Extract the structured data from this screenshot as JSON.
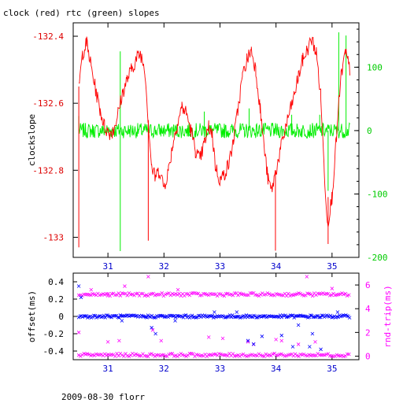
{
  "colors": {
    "clock": "#ff0000",
    "rtc": "#00ee00",
    "offset": "#0000ff",
    "roundtrip": "#ff00ff",
    "frame": "#000000"
  },
  "chart_data": [
    {
      "type": "line",
      "title": "clock (red) rtc (green) slopes",
      "xlabel": "",
      "ylabel": "clockslope",
      "xlim": [
        30.38,
        35.48
      ],
      "ylim": [
        -133.06,
        -132.36
      ],
      "y2lim": [
        -200,
        170
      ],
      "xticks": [
        31,
        32,
        33,
        34,
        35
      ],
      "yticks": [
        -132.4,
        -132.6,
        -132.8,
        -133
      ],
      "y2ticks": [
        100,
        0,
        -100,
        -200
      ],
      "xticklabels": [
        "31",
        "32",
        "33",
        "34",
        "35"
      ],
      "yticklabels": [
        "-132.4",
        "-132.6",
        "-132.8",
        "-133"
      ],
      "y2ticklabels": [
        "100",
        "0",
        "-100",
        "-200"
      ],
      "series": [
        {
          "name": "clock",
          "axis": "left",
          "color": "#ff0000",
          "x": [
            30.48,
            30.55,
            30.62,
            30.7,
            30.78,
            30.86,
            30.94,
            31.02,
            31.1,
            31.18,
            31.26,
            31.34,
            31.42,
            31.5,
            31.58,
            31.66,
            31.72,
            31.78,
            31.84,
            31.92,
            32.0,
            32.08,
            32.16,
            32.24,
            32.32,
            32.4,
            32.48,
            32.56,
            32.64,
            32.72,
            32.8,
            32.86,
            32.92,
            33.0,
            33.08,
            33.16,
            33.24,
            33.32,
            33.4,
            33.48,
            33.56,
            33.64,
            33.72,
            33.8,
            33.86,
            33.92,
            34.0,
            34.08,
            34.16,
            34.24,
            34.32,
            34.4,
            34.48,
            34.56,
            34.64,
            34.72,
            34.8,
            34.86,
            34.92,
            35.0,
            35.08,
            35.16,
            35.24,
            35.32
          ],
          "values": [
            -132.55,
            -132.45,
            -132.42,
            -132.49,
            -132.56,
            -132.62,
            -132.67,
            -132.69,
            -132.68,
            -132.63,
            -132.57,
            -132.53,
            -132.5,
            -132.47,
            -132.45,
            -132.5,
            -132.65,
            -132.79,
            -132.82,
            -132.8,
            -132.85,
            -132.8,
            -132.72,
            -132.66,
            -132.61,
            -132.63,
            -132.68,
            -132.74,
            -132.77,
            -132.72,
            -132.67,
            -132.69,
            -132.79,
            -132.83,
            -132.81,
            -132.78,
            -132.71,
            -132.62,
            -132.52,
            -132.47,
            -132.44,
            -132.5,
            -132.62,
            -132.75,
            -132.83,
            -132.86,
            -132.8,
            -132.74,
            -132.68,
            -132.63,
            -132.58,
            -132.52,
            -132.47,
            -132.44,
            -132.41,
            -132.45,
            -132.58,
            -132.8,
            -132.96,
            -132.88,
            -132.7,
            -132.52,
            -132.45,
            -132.5
          ],
          "spikes": [
            {
              "x": 30.48,
              "y": -133.03
            },
            {
              "x": 31.72,
              "y": -133.01
            },
            {
              "x": 33.99,
              "y": -133.04
            },
            {
              "x": 34.93,
              "y": -133.02
            }
          ]
        },
        {
          "name": "rtc",
          "axis": "right",
          "color": "#00ee00",
          "x": [
            30.48,
            35.32
          ],
          "values": [
            0,
            0
          ],
          "noise_amplitude": 12,
          "spikes": [
            {
              "x": 30.48,
              "y": 23
            },
            {
              "x": 31.22,
              "y": 125
            },
            {
              "x": 31.22,
              "y": -190
            },
            {
              "x": 32.72,
              "y": 30
            },
            {
              "x": 33.52,
              "y": 35
            },
            {
              "x": 34.28,
              "y": 25
            },
            {
              "x": 34.78,
              "y": 25
            },
            {
              "x": 34.93,
              "y": -95
            },
            {
              "x": 35.12,
              "y": 155
            },
            {
              "x": 35.25,
              "y": 150
            }
          ]
        }
      ]
    },
    {
      "type": "scatter",
      "title": "",
      "xlabel": "",
      "ylabel": "offset(ms)",
      "y2label": "rnd-trip(ms)",
      "xlim": [
        30.38,
        35.48
      ],
      "ylim": [
        -0.5,
        0.5
      ],
      "y2lim": [
        -0.3,
        7.0
      ],
      "xticks": [
        31,
        32,
        33,
        34,
        35
      ],
      "yticks": [
        0.4,
        0.2,
        0,
        -0.2,
        -0.4
      ],
      "y2ticks": [
        0,
        2,
        4,
        6
      ],
      "xticklabels": [
        "31",
        "32",
        "33",
        "34",
        "35"
      ],
      "yticklabels": [
        "0.4",
        "0.2",
        "0",
        "-0.2",
        "-0.4"
      ],
      "y2ticklabels": [
        "0",
        "2",
        "4",
        "6"
      ],
      "series": [
        {
          "name": "offset",
          "axis": "left",
          "color": "#0000ff",
          "baseline": 0.0,
          "outliers": [
            {
              "x": 30.48,
              "y": 0.35
            },
            {
              "x": 30.52,
              "y": 0.22
            },
            {
              "x": 31.25,
              "y": -0.05
            },
            {
              "x": 31.78,
              "y": -0.13
            },
            {
              "x": 31.85,
              "y": -0.2
            },
            {
              "x": 32.2,
              "y": -0.05
            },
            {
              "x": 32.9,
              "y": 0.05
            },
            {
              "x": 33.3,
              "y": 0.05
            },
            {
              "x": 33.5,
              "y": -0.28
            },
            {
              "x": 33.6,
              "y": -0.32
            },
            {
              "x": 33.75,
              "y": -0.23
            },
            {
              "x": 34.1,
              "y": -0.22
            },
            {
              "x": 34.3,
              "y": -0.35
            },
            {
              "x": 34.4,
              "y": -0.1
            },
            {
              "x": 34.6,
              "y": -0.35
            },
            {
              "x": 34.65,
              "y": -0.2
            },
            {
              "x": 34.8,
              "y": -0.38
            },
            {
              "x": 35.1,
              "y": 0.05
            }
          ]
        },
        {
          "name": "rnd-trip",
          "axis": "right",
          "color": "#ff00ff",
          "bands": [
            0.1,
            5.2
          ],
          "outliers": [
            {
              "x": 30.48,
              "y": 2.0
            },
            {
              "x": 30.7,
              "y": 5.6
            },
            {
              "x": 31.0,
              "y": 5.1
            },
            {
              "x": 31.0,
              "y": 1.2
            },
            {
              "x": 31.2,
              "y": 1.3
            },
            {
              "x": 31.3,
              "y": 5.9
            },
            {
              "x": 31.72,
              "y": 6.7
            },
            {
              "x": 31.8,
              "y": 2.2
            },
            {
              "x": 31.95,
              "y": 1.3
            },
            {
              "x": 32.25,
              "y": 5.6
            },
            {
              "x": 32.8,
              "y": 1.6
            },
            {
              "x": 33.05,
              "y": 1.5
            },
            {
              "x": 33.5,
              "y": 1.2
            },
            {
              "x": 33.6,
              "y": 1.0
            },
            {
              "x": 34.0,
              "y": 1.4
            },
            {
              "x": 34.1,
              "y": 1.3
            },
            {
              "x": 34.4,
              "y": 1.0
            },
            {
              "x": 34.55,
              "y": 6.7
            },
            {
              "x": 34.7,
              "y": 1.2
            },
            {
              "x": 35.0,
              "y": 5.7
            }
          ]
        }
      ]
    }
  ],
  "footer": {
    "caption": "2009-08-30 florr"
  }
}
